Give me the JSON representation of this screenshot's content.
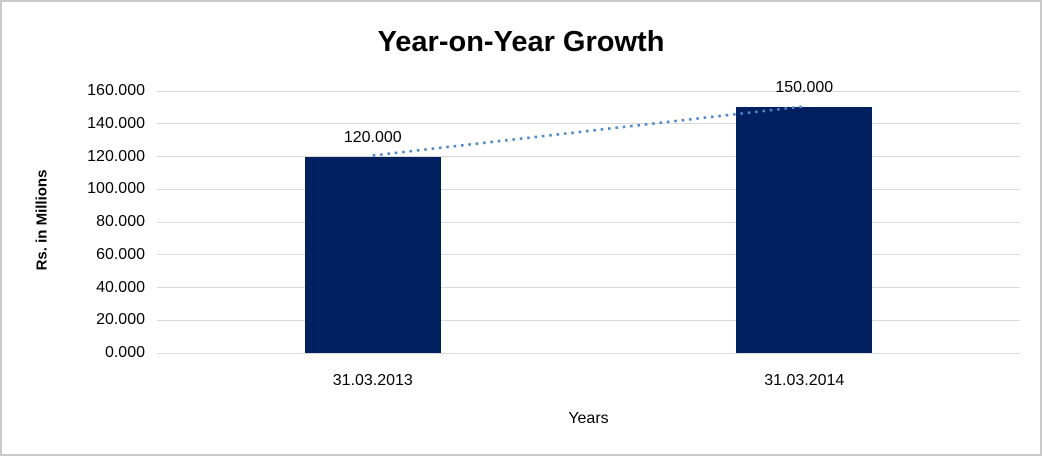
{
  "chart_data": {
    "type": "bar",
    "title": "Year-on-Year Growth",
    "categories": [
      "31.03.2013",
      "31.03.2014"
    ],
    "values": [
      120.0,
      150.0
    ],
    "value_labels": [
      "120.000",
      "150.000"
    ],
    "xlabel": "Years",
    "ylabel": "Rs. in Millions",
    "ylim": [
      0,
      160
    ],
    "ytick_step": 20,
    "yticks": [
      {
        "value": 0,
        "label": "0.000"
      },
      {
        "value": 20,
        "label": "20.000"
      },
      {
        "value": 40,
        "label": "40.000"
      },
      {
        "value": 60,
        "label": "60.000"
      },
      {
        "value": 80,
        "label": "80.000"
      },
      {
        "value": 100,
        "label": "100.000"
      },
      {
        "value": 120,
        "label": "120.000"
      },
      {
        "value": 140,
        "label": "140.000"
      },
      {
        "value": 160,
        "label": "160.000"
      },
      {
        "value": 180,
        "label": ""
      }
    ],
    "grid": "horizontal",
    "legend": "none",
    "trendline": {
      "type": "linear",
      "style": "dotted",
      "color": "#4e87c7",
      "connects_points": [
        120.0,
        150.0
      ]
    },
    "colors": {
      "bar": "#002060",
      "gridline": "#d9d9d9",
      "text": "#000000",
      "frame_border": "#c9c9c9",
      "background": "#ffffff"
    }
  }
}
